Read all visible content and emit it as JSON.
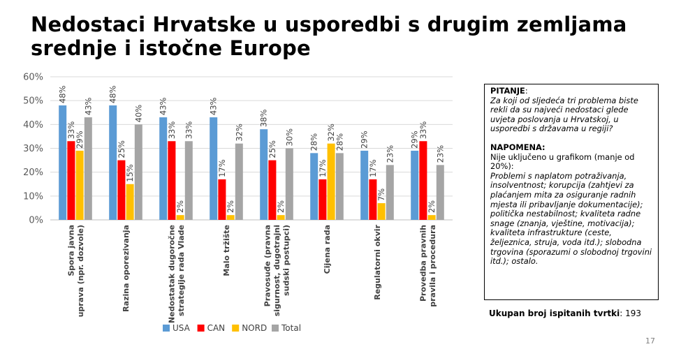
{
  "title": "Nedostaci Hrvatske u usporedbi s drugim zemljama srednje i istočne Europe",
  "chart_data": {
    "type": "bar",
    "categories": [
      [
        "Spora javna",
        "uprava (npr. dozvole)"
      ],
      [
        "Razina oporezivanja"
      ],
      [
        "Nedostatak dugoročne",
        "strategije rada Vlade"
      ],
      [
        "Malo tržište"
      ],
      [
        "Pravosuđe (pravna",
        "sigurnost, dugotrajni",
        "sudski postupci)"
      ],
      [
        "Cijena rada"
      ],
      [
        "Regulatorni okvir"
      ],
      [
        "Provedba pravnih",
        "pravila i procedura"
      ]
    ],
    "series": [
      {
        "name": "USA",
        "color": "#5B9BD5",
        "values": [
          48,
          48,
          43,
          43,
          38,
          28,
          29,
          29
        ],
        "labels": [
          "48%",
          "48%",
          "43%",
          "43%",
          "38%",
          "28%",
          "29%",
          "29%"
        ]
      },
      {
        "name": "CAN",
        "color": "#FF0000",
        "values": [
          33,
          25,
          33,
          17,
          25,
          17,
          17,
          33
        ],
        "labels": [
          "33%",
          "25%",
          "33%",
          "17%",
          "25%",
          "17%",
          "17%",
          "33%"
        ]
      },
      {
        "name": "NORD",
        "color": "#FFC000",
        "values": [
          29,
          15,
          2,
          2,
          2,
          32,
          7,
          2
        ],
        "labels": [
          "29%",
          "15%",
          "2%",
          "2%",
          "2%",
          "32%",
          "7%",
          "2%"
        ]
      },
      {
        "name": "Total",
        "color": "#A5A5A5",
        "values": [
          43,
          40,
          33,
          32,
          30,
          28,
          23,
          23
        ],
        "labels": [
          "43%",
          "40%",
          "33%",
          "32%",
          "30%",
          "28%",
          "23%",
          "23%"
        ]
      }
    ],
    "yticks": [
      "0%",
      "10%",
      "20%",
      "30%",
      "40%",
      "50%",
      "60%"
    ],
    "ylim": [
      0,
      60
    ],
    "grid": true,
    "legend": "bottom"
  },
  "question_box": {
    "heading": "PITANJE",
    "question": "Za koji od sljedeća tri problema biste rekli da su najveći nedostaci glede uvjeta poslovanja u Hrvatskoj, u usporedbi s državama u regiji?",
    "note_heading": "NAPOMENA:",
    "note_intro": "Nije uključeno u grafikom (manje od 20%):",
    "note_items": "Problemi s naplatom potraživanja, insolventnost; korupcija (zahtjevi za plaćanjem mita za osiguranje radnih mjesta ili pribavljanje dokumentacije); politička nestabilnost; kvaliteta radne snage (znanja, vještine, motivacija); kvaliteta infrastrukture (ceste, željeznica, struja, voda itd.); slobodna trgovina (sporazumi o slobodnoj trgovini itd.); ostalo."
  },
  "respondents": {
    "label": "Ukupan broj ispitanih tvrtki",
    "value": "193"
  },
  "page_number": "17"
}
